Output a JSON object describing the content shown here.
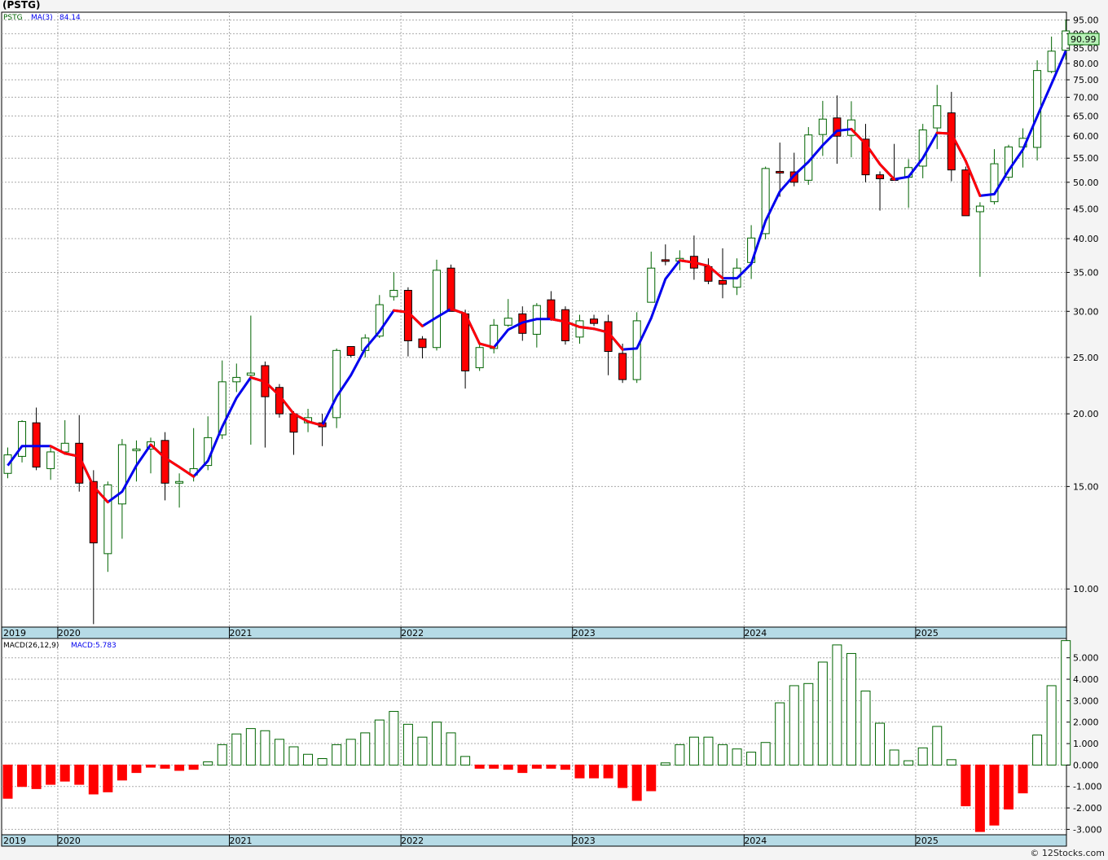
{
  "title": "(PSTG)",
  "credit": "© 12Stocks.com",
  "colors": {
    "up": "#006400",
    "down": "#ff0000",
    "ma_up": "#0000ee",
    "ma_down": "#ff0000",
    "year_band": "#b6dbe6",
    "last_badge": "#b9f2b9",
    "grid": "#aaaaaa"
  },
  "chart_data": [
    {
      "type": "candlestick",
      "scale": "log",
      "ylim": [
        8.6,
        98
      ],
      "yticks": [
        "10.00",
        "15.00",
        "20.00",
        "25.00",
        "30.00",
        "35.00",
        "40.00",
        "45.00",
        "50.00",
        "55.00",
        "60.00",
        "65.00",
        "70.00",
        "75.00",
        "80.00",
        "85.00",
        "90.00",
        "95.00"
      ],
      "legend": {
        "symbol": "PSTG",
        "ma_label": "MA(3)",
        "ma_value": "84.14"
      },
      "last_price": "90.99",
      "years": [
        {
          "label": "2019",
          "index": 0
        },
        {
          "label": "2020",
          "index": 4
        },
        {
          "label": "2021",
          "index": 16
        },
        {
          "label": "2022",
          "index": 28
        },
        {
          "label": "2023",
          "index": 40
        },
        {
          "label": "2024",
          "index": 52
        },
        {
          "label": "2025",
          "index": 64
        }
      ],
      "ohlc": [
        [
          15.8,
          17.0,
          15.5,
          17.5
        ],
        [
          16.9,
          19.4,
          16.5,
          19.5
        ],
        [
          19.3,
          16.2,
          16.0,
          20.5
        ],
        [
          16.1,
          17.2,
          15.4,
          17.5
        ],
        [
          17.2,
          17.8,
          17.0,
          19.5
        ],
        [
          17.8,
          15.2,
          14.7,
          19.9
        ],
        [
          15.3,
          12.0,
          8.7,
          16.0
        ],
        [
          11.5,
          15.1,
          10.7,
          15.3
        ],
        [
          14.0,
          17.7,
          12.2,
          18.1
        ],
        [
          17.3,
          17.4,
          15.3,
          18.0
        ],
        [
          17.4,
          17.9,
          15.8,
          18.2
        ],
        [
          18.0,
          15.2,
          14.2,
          18.6
        ],
        [
          15.3,
          15.3,
          13.8,
          15.8
        ],
        [
          15.7,
          16.1,
          15.3,
          18.9
        ],
        [
          16.3,
          18.2,
          16.0,
          19.8
        ],
        [
          18.4,
          22.7,
          18.1,
          24.7
        ],
        [
          22.7,
          23.1,
          21.8,
          24.4
        ],
        [
          23.3,
          23.5,
          17.7,
          29.5
        ],
        [
          24.2,
          21.4,
          17.5,
          24.6
        ],
        [
          22.2,
          20.0,
          19.7,
          22.5
        ],
        [
          20.0,
          18.6,
          17.0,
          20.2
        ],
        [
          19.3,
          19.7,
          18.6,
          20.4
        ],
        [
          19.3,
          19.0,
          17.6,
          20.0
        ],
        [
          19.7,
          25.7,
          18.9,
          25.9
        ],
        [
          26.1,
          25.2,
          25.0,
          25.9
        ],
        [
          25.7,
          27.0,
          25.0,
          27.4
        ],
        [
          27.2,
          30.8,
          27.0,
          32.0
        ],
        [
          31.8,
          32.6,
          31.3,
          35.0
        ],
        [
          32.6,
          26.7,
          25.1,
          33.0
        ],
        [
          26.9,
          26.0,
          24.9,
          27.2
        ],
        [
          26.0,
          35.3,
          25.7,
          36.8
        ],
        [
          35.6,
          30.0,
          30.0,
          36.1
        ],
        [
          29.7,
          23.7,
          22.1,
          30.2
        ],
        [
          24.0,
          26.0,
          23.7,
          26.5
        ],
        [
          25.9,
          28.4,
          25.4,
          29.1
        ],
        [
          28.4,
          29.2,
          28.2,
          31.5
        ],
        [
          29.7,
          27.5,
          26.7,
          30.6
        ],
        [
          27.4,
          30.7,
          26.0,
          31.0
        ],
        [
          31.4,
          29.1,
          28.9,
          32.5
        ],
        [
          30.2,
          26.7,
          26.3,
          30.6
        ],
        [
          27.1,
          28.9,
          26.4,
          29.6
        ],
        [
          29.1,
          28.6,
          28.3,
          29.6
        ],
        [
          28.8,
          25.6,
          23.3,
          29.6
        ],
        [
          25.4,
          22.9,
          22.6,
          26.4
        ],
        [
          22.9,
          28.9,
          22.6,
          29.9
        ],
        [
          31.1,
          35.6,
          31.1,
          38.0
        ],
        [
          36.8,
          36.7,
          36.0,
          39.1
        ],
        [
          36.6,
          37.0,
          35.3,
          38.2
        ],
        [
          37.3,
          35.6,
          34.0,
          40.5
        ],
        [
          35.8,
          33.8,
          33.4,
          37.0
        ],
        [
          33.9,
          33.4,
          31.6,
          38.5
        ],
        [
          33.0,
          35.6,
          32.0,
          37.0
        ],
        [
          36.4,
          40.1,
          34.1,
          42.2
        ],
        [
          40.8,
          52.8,
          39.9,
          53.2
        ],
        [
          52.2,
          52.0,
          47.2,
          58.5
        ],
        [
          52.1,
          50.0,
          49.2,
          56.2
        ],
        [
          50.4,
          60.3,
          49.5,
          62.2
        ],
        [
          60.4,
          64.2,
          55.5,
          69.0
        ],
        [
          64.5,
          60.0,
          53.8,
          70.5
        ],
        [
          60.2,
          64.0,
          55.2,
          68.9
        ],
        [
          59.3,
          51.5,
          50.0,
          63.0
        ],
        [
          51.5,
          50.7,
          44.7,
          52.2
        ],
        [
          50.7,
          50.6,
          50.4,
          58.2
        ],
        [
          51.0,
          53.0,
          45.2,
          54.8
        ],
        [
          53.3,
          61.5,
          50.8,
          63.0
        ],
        [
          62.0,
          67.7,
          57.0,
          73.5
        ],
        [
          65.8,
          52.5,
          50.2,
          71.5
        ],
        [
          52.5,
          43.8,
          43.8,
          53.2
        ],
        [
          44.5,
          45.5,
          34.4,
          46.2
        ],
        [
          46.3,
          53.8,
          45.8,
          57.0
        ],
        [
          51.0,
          57.5,
          50.3,
          58.0
        ],
        [
          57.5,
          59.5,
          53.0,
          61.9
        ],
        [
          57.4,
          77.8,
          54.5,
          81.0
        ],
        [
          77.5,
          84.0,
          77.0,
          89.0
        ],
        [
          84.3,
          91.0,
          81.2,
          95.2
        ]
      ],
      "ma3": [
        16.3,
        17.6,
        17.6,
        17.6,
        17.1,
        16.9,
        15.0,
        14.1,
        14.7,
        16.3,
        17.7,
        16.8,
        16.2,
        15.6,
        16.6,
        19.0,
        21.3,
        23.1,
        22.7,
        21.5,
        20.0,
        19.4,
        19.1,
        21.4,
        23.3,
        25.9,
        27.7,
        30.1,
        29.9,
        28.3,
        29.3,
        30.3,
        29.7,
        26.4,
        26.0,
        27.9,
        28.7,
        29.1,
        29.1,
        28.8,
        28.2,
        28.0,
        27.6,
        25.8,
        25.9,
        29.2,
        34.1,
        36.7,
        36.4,
        35.9,
        34.2,
        34.2,
        36.2,
        42.9,
        48.2,
        51.4,
        54.2,
        57.9,
        61.3,
        61.7,
        58.2,
        53.7,
        50.6,
        51.1,
        55.0,
        60.8,
        60.6,
        54.4,
        47.4,
        47.7,
        52.4,
        56.9,
        64.9,
        73.8,
        84.1
      ]
    },
    {
      "type": "bar",
      "legend": {
        "label": "MACD(26,12,9)",
        "value_label": "MACD:5.783"
      },
      "ylim": [
        -3.25,
        5.9
      ],
      "yticks": [
        "-3.000",
        "-2.000",
        "-1.000",
        "0.000",
        "1.000",
        "2.000",
        "3.000",
        "4.000",
        "5.000"
      ],
      "years": [
        {
          "label": "2019",
          "index": 0
        },
        {
          "label": "2020",
          "index": 4
        },
        {
          "label": "2021",
          "index": 16
        },
        {
          "label": "2022",
          "index": 28
        },
        {
          "label": "2023",
          "index": 40
        },
        {
          "label": "2024",
          "index": 52
        },
        {
          "label": "2025",
          "index": 64
        }
      ],
      "values": [
        -1.55,
        -1.0,
        -1.1,
        -0.9,
        -0.75,
        -0.9,
        -1.35,
        -1.25,
        -0.7,
        -0.35,
        -0.1,
        -0.15,
        -0.25,
        -0.2,
        0.15,
        0.95,
        1.45,
        1.7,
        1.6,
        1.2,
        0.85,
        0.5,
        0.3,
        0.95,
        1.2,
        1.5,
        2.1,
        2.5,
        1.9,
        1.3,
        2.0,
        1.5,
        0.4,
        -0.15,
        -0.15,
        -0.2,
        -0.35,
        -0.15,
        -0.15,
        -0.2,
        -0.6,
        -0.6,
        -0.6,
        -1.05,
        -1.65,
        -1.2,
        0.1,
        0.95,
        1.3,
        1.3,
        0.95,
        0.75,
        0.6,
        1.05,
        2.9,
        3.7,
        3.8,
        4.8,
        5.6,
        5.2,
        3.45,
        1.95,
        0.7,
        0.2,
        0.8,
        1.8,
        0.25,
        -1.9,
        -3.1,
        -2.8,
        -2.05,
        -1.3,
        1.4,
        3.7,
        5.8
      ]
    }
  ]
}
